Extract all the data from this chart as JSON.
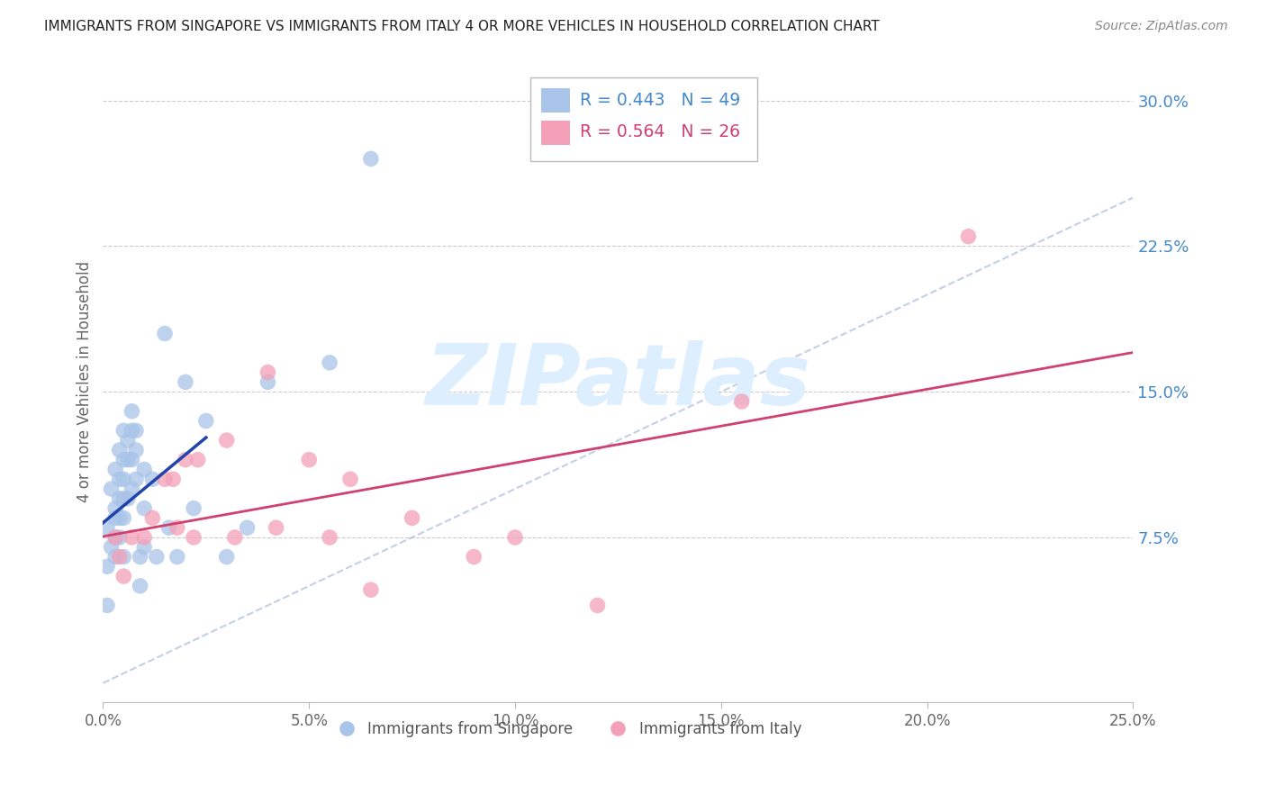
{
  "title": "IMMIGRANTS FROM SINGAPORE VS IMMIGRANTS FROM ITALY 4 OR MORE VEHICLES IN HOUSEHOLD CORRELATION CHART",
  "source": "Source: ZipAtlas.com",
  "ylabel": "4 or more Vehicles in Household",
  "xlim": [
    0,
    0.25
  ],
  "ylim": [
    -0.01,
    0.32
  ],
  "xticks": [
    0.0,
    0.05,
    0.1,
    0.15,
    0.2,
    0.25
  ],
  "yticks_right": [
    0.075,
    0.15,
    0.225,
    0.3
  ],
  "ytick_labels_right": [
    "7.5%",
    "15.0%",
    "22.5%",
    "30.0%"
  ],
  "xtick_labels": [
    "0.0%",
    "5.0%",
    "10.0%",
    "15.0%",
    "20.0%",
    "25.0%"
  ],
  "singapore_R": 0.443,
  "singapore_N": 49,
  "italy_R": 0.564,
  "italy_N": 26,
  "singapore_color": "#a8c4e8",
  "singapore_line_color": "#2244aa",
  "italy_color": "#f4a0b8",
  "italy_line_color": "#d04070",
  "watermark_color": "#ddeeff",
  "grid_color": "#cccccc",
  "legend_label_singapore": "Immigrants from Singapore",
  "legend_label_italy": "Immigrants from Italy",
  "singapore_x": [
    0.001,
    0.001,
    0.001,
    0.002,
    0.002,
    0.003,
    0.003,
    0.003,
    0.003,
    0.003,
    0.004,
    0.004,
    0.004,
    0.004,
    0.004,
    0.005,
    0.005,
    0.005,
    0.005,
    0.005,
    0.005,
    0.006,
    0.006,
    0.006,
    0.007,
    0.007,
    0.007,
    0.007,
    0.008,
    0.008,
    0.008,
    0.009,
    0.009,
    0.01,
    0.01,
    0.01,
    0.012,
    0.013,
    0.015,
    0.016,
    0.018,
    0.02,
    0.022,
    0.025,
    0.03,
    0.035,
    0.04,
    0.055,
    0.065
  ],
  "singapore_y": [
    0.08,
    0.06,
    0.04,
    0.1,
    0.07,
    0.11,
    0.09,
    0.085,
    0.075,
    0.065,
    0.12,
    0.105,
    0.095,
    0.085,
    0.075,
    0.13,
    0.115,
    0.105,
    0.095,
    0.085,
    0.065,
    0.125,
    0.115,
    0.095,
    0.14,
    0.13,
    0.115,
    0.1,
    0.13,
    0.12,
    0.105,
    0.065,
    0.05,
    0.11,
    0.09,
    0.07,
    0.105,
    0.065,
    0.18,
    0.08,
    0.065,
    0.155,
    0.09,
    0.135,
    0.065,
    0.08,
    0.155,
    0.165,
    0.27
  ],
  "italy_x": [
    0.003,
    0.004,
    0.005,
    0.007,
    0.01,
    0.012,
    0.015,
    0.017,
    0.018,
    0.02,
    0.022,
    0.023,
    0.03,
    0.032,
    0.04,
    0.042,
    0.05,
    0.055,
    0.06,
    0.065,
    0.075,
    0.09,
    0.1,
    0.12,
    0.155,
    0.21
  ],
  "italy_y": [
    0.075,
    0.065,
    0.055,
    0.075,
    0.075,
    0.085,
    0.105,
    0.105,
    0.08,
    0.115,
    0.075,
    0.115,
    0.125,
    0.075,
    0.16,
    0.08,
    0.115,
    0.075,
    0.105,
    0.048,
    0.085,
    0.065,
    0.075,
    0.04,
    0.145,
    0.23
  ]
}
